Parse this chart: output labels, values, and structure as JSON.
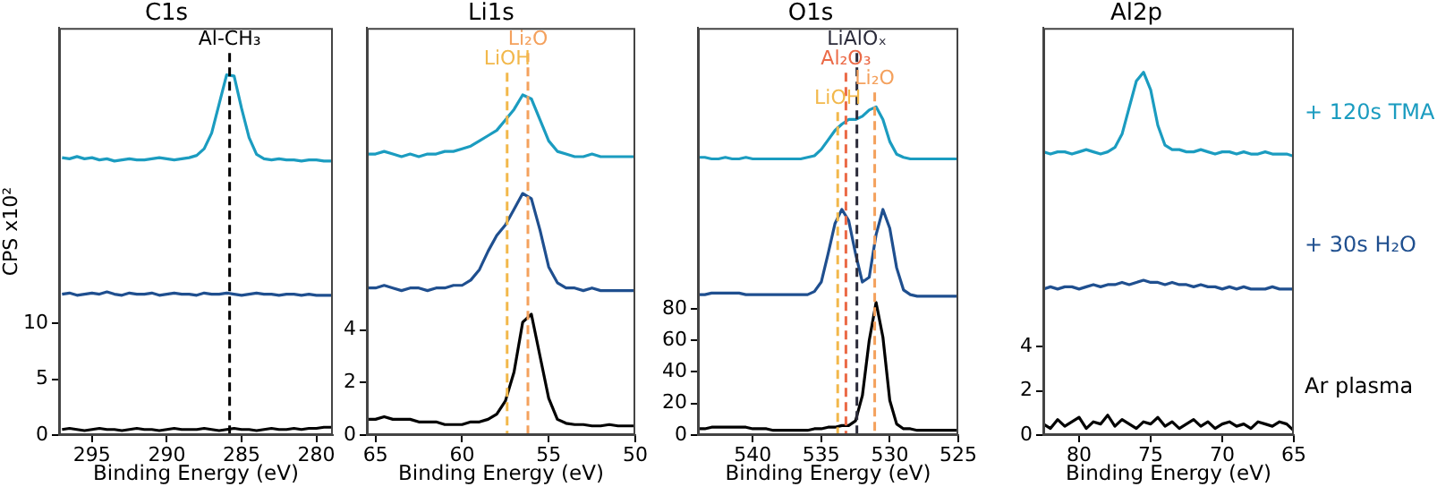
{
  "chart_data": [
    {
      "type": "line",
      "title": "C1s",
      "xlabel": "Binding Energy (eV)",
      "ylabel": "CPS x10²",
      "xlim": [
        297.2,
        278.9
      ],
      "xticks": [
        295,
        290,
        285,
        280
      ],
      "ylim": [
        0,
        36.4
      ],
      "yticks": [
        0,
        5,
        10
      ],
      "x": [
        297,
        296.5,
        296,
        295.5,
        295,
        294.5,
        294,
        293.5,
        293,
        292.5,
        292,
        291.5,
        291,
        290.5,
        290,
        289.5,
        289,
        288.5,
        288,
        287.5,
        287,
        286.5,
        286,
        285.5,
        285,
        284.5,
        284,
        283.5,
        283,
        282.5,
        282,
        281.5,
        281,
        280.5,
        280,
        279.5,
        279
      ],
      "series": [
        {
          "color": "#000000",
          "values": [
            0.5,
            0.6,
            0.5,
            0.4,
            0.5,
            0.6,
            0.5,
            0.5,
            0.4,
            0.5,
            0.6,
            0.5,
            0.5,
            0.4,
            0.5,
            0.6,
            0.5,
            0.5,
            0.5,
            0.6,
            0.5,
            0.4,
            0.5,
            0.6,
            0.5,
            0.5,
            0.4,
            0.5,
            0.6,
            0.5,
            0.5,
            0.6,
            0.5,
            0.6,
            0.6,
            0.7,
            0.7
          ]
        },
        {
          "color": "#1f4f8f",
          "values": [
            12.6,
            12.7,
            12.5,
            12.6,
            12.7,
            12.6,
            12.8,
            12.6,
            12.5,
            12.7,
            12.6,
            12.6,
            12.7,
            12.5,
            12.6,
            12.7,
            12.6,
            12.6,
            12.5,
            12.7,
            12.6,
            12.6,
            12.7,
            12.6,
            12.5,
            12.6,
            12.7,
            12.6,
            12.6,
            12.5,
            12.6,
            12.6,
            12.5,
            12.6,
            12.5,
            12.5,
            12.5
          ]
        },
        {
          "color": "#1b9cc0",
          "values": [
            24.8,
            24.7,
            24.9,
            24.7,
            24.8,
            24.6,
            24.7,
            24.5,
            24.6,
            24.7,
            24.6,
            24.6,
            24.7,
            24.8,
            24.7,
            24.6,
            24.7,
            24.8,
            25.0,
            25.6,
            27.0,
            29.6,
            32.2,
            32.1,
            29.2,
            26.6,
            25.1,
            24.7,
            24.6,
            24.7,
            24.6,
            24.6,
            24.5,
            24.6,
            24.6,
            24.5,
            24.5
          ]
        }
      ],
      "ref_lines": [
        {
          "axis": "x",
          "value": 285.8,
          "label": "Al-CH₃",
          "color": "#000000",
          "line_style": "dashed"
        }
      ]
    },
    {
      "type": "line",
      "title": "Li1s",
      "xlabel": "Binding Energy (eV)",
      "xlim": [
        65.5,
        50
      ],
      "xticks": [
        65,
        60,
        55,
        50
      ],
      "ylim": [
        0,
        15.5
      ],
      "yticks": [
        0,
        2,
        4
      ],
      "x": [
        65.5,
        65,
        64.5,
        64,
        63.5,
        63,
        62.5,
        62,
        61.5,
        61,
        60.5,
        60,
        59.5,
        59,
        58.5,
        58,
        57.5,
        57,
        56.5,
        56,
        55.5,
        55,
        54.5,
        54,
        53.5,
        53,
        52.5,
        52,
        51.5,
        51,
        50.5,
        50
      ],
      "series": [
        {
          "color": "#000000",
          "values": [
            0.6,
            0.6,
            0.7,
            0.6,
            0.6,
            0.6,
            0.5,
            0.5,
            0.5,
            0.4,
            0.4,
            0.4,
            0.5,
            0.5,
            0.6,
            0.8,
            1.3,
            2.4,
            4.3,
            4.6,
            3.0,
            1.4,
            0.6,
            0.45,
            0.4,
            0.4,
            0.35,
            0.35,
            0.4,
            0.35,
            0.35,
            0.35
          ]
        },
        {
          "color": "#1f4f8f",
          "values": [
            5.6,
            5.6,
            5.7,
            5.6,
            5.5,
            5.6,
            5.6,
            5.5,
            5.6,
            5.6,
            5.7,
            5.7,
            5.9,
            6.3,
            7.0,
            7.6,
            8.0,
            8.6,
            9.2,
            9.0,
            7.8,
            6.4,
            5.8,
            5.6,
            5.6,
            5.5,
            5.6,
            5.5,
            5.5,
            5.5,
            5.5,
            5.5
          ]
        },
        {
          "color": "#1b9cc0",
          "values": [
            10.7,
            10.7,
            10.8,
            10.7,
            10.6,
            10.7,
            10.6,
            10.7,
            10.7,
            10.8,
            10.8,
            10.9,
            11.0,
            11.2,
            11.4,
            11.6,
            12.0,
            12.4,
            12.95,
            12.8,
            12.0,
            11.2,
            10.8,
            10.7,
            10.6,
            10.6,
            10.7,
            10.6,
            10.6,
            10.6,
            10.6,
            10.6
          ]
        }
      ],
      "ref_lines": [
        {
          "axis": "x",
          "value": 56.2,
          "label": "Li₂O",
          "color": "#f4a15d",
          "line_style": "dashed"
        },
        {
          "axis": "x",
          "value": 57.4,
          "label": "LiOH",
          "color": "#f2b84b",
          "line_style": "dashed"
        }
      ]
    },
    {
      "type": "line",
      "title": "O1s",
      "xlabel": "Binding Energy (eV)",
      "xlim": [
        544,
        525
      ],
      "xticks": [
        540,
        535,
        530,
        525
      ],
      "ylim": [
        0,
        258
      ],
      "yticks": [
        0,
        20,
        40,
        60,
        80
      ],
      "x": [
        544,
        543.5,
        543,
        542.5,
        542,
        541.5,
        541,
        540.5,
        540,
        539.5,
        539,
        538.5,
        538,
        537.5,
        537,
        536.5,
        536,
        535.5,
        535,
        534.5,
        534,
        533.5,
        533,
        532.5,
        532,
        531.5,
        531,
        530.5,
        530,
        529.5,
        529,
        528.5,
        528,
        527.5,
        527,
        526.5,
        526,
        525.5,
        525
      ],
      "series": [
        {
          "color": "#000000",
          "values": [
            4,
            4,
            5,
            5,
            5,
            5,
            5,
            5,
            4,
            4,
            4,
            3,
            3,
            3,
            3,
            3,
            3,
            4,
            4,
            5,
            5,
            6,
            6,
            9,
            25,
            60,
            84,
            62,
            22,
            7,
            4,
            4,
            3,
            3,
            3,
            3,
            3,
            3,
            3
          ]
        },
        {
          "color": "#1f4f8f",
          "values": [
            89,
            89,
            90,
            90,
            90,
            90,
            90,
            89,
            89,
            89,
            89,
            89,
            89,
            89,
            89,
            89,
            89,
            91,
            97,
            115,
            134,
            143,
            136,
            115,
            97,
            100,
            127,
            143,
            131,
            106,
            92,
            89,
            88,
            88,
            88,
            88,
            88,
            88,
            88
          ]
        },
        {
          "color": "#1b9cc0",
          "values": [
            176,
            176,
            175,
            175,
            176,
            175,
            175,
            176,
            175,
            175,
            175,
            175,
            175,
            175,
            175,
            175,
            176,
            177,
            181,
            187,
            193,
            197,
            200,
            200,
            202,
            206,
            208,
            200,
            186,
            178,
            176,
            175,
            175,
            175,
            175,
            175,
            175,
            175,
            175
          ]
        }
      ],
      "ref_lines": [
        {
          "axis": "x",
          "value": 532.4,
          "label": "LiAlOₓ",
          "color": "#2b2b3a",
          "line_style": "dashed"
        },
        {
          "axis": "x",
          "value": 533.2,
          "label": "Al₂O₃",
          "color": "#eb6a47",
          "line_style": "dashed"
        },
        {
          "axis": "x",
          "value": 531.1,
          "label": "Li₂O",
          "color": "#f4a15d",
          "line_style": "dashed"
        },
        {
          "axis": "x",
          "value": 533.8,
          "label": "LiOH",
          "color": "#f2b84b",
          "line_style": "dashed"
        }
      ]
    },
    {
      "type": "line",
      "title": "Al2p",
      "xlabel": "Binding Energy (eV)",
      "xlim": [
        82.5,
        65
      ],
      "xticks": [
        80,
        75,
        70,
        65
      ],
      "ylim": [
        0,
        18.4
      ],
      "yticks": [
        0,
        2,
        4
      ],
      "x": [
        82.5,
        82,
        81.5,
        81,
        80.5,
        80,
        79.5,
        79,
        78.5,
        78,
        77.5,
        77,
        76.5,
        76,
        75.5,
        75,
        74.5,
        74,
        73.5,
        73,
        72.5,
        72,
        71.5,
        71,
        70.5,
        70,
        69.5,
        69,
        68.5,
        68,
        67.5,
        67,
        66.5,
        66,
        65.5,
        65
      ],
      "series": [
        {
          "name": "Ar plasma",
          "color": "#000000",
          "values": [
            0.5,
            0.3,
            0.7,
            0.4,
            0.6,
            0.8,
            0.3,
            0.6,
            0.5,
            0.9,
            0.4,
            0.7,
            0.5,
            0.3,
            0.6,
            0.5,
            0.8,
            0.4,
            0.6,
            0.3,
            0.5,
            0.7,
            0.4,
            0.6,
            0.3,
            0.5,
            0.6,
            0.4,
            0.5,
            0.3,
            0.6,
            0.5,
            0.4,
            0.6,
            0.5,
            0.2
          ]
        },
        {
          "name": "+ 30s H₂O",
          "color": "#1f4f8f",
          "values": [
            6.6,
            6.7,
            6.6,
            6.7,
            6.7,
            6.6,
            6.7,
            6.8,
            6.7,
            6.8,
            6.8,
            6.9,
            6.8,
            6.9,
            7.0,
            6.9,
            6.9,
            6.8,
            6.9,
            6.8,
            6.8,
            6.7,
            6.8,
            6.7,
            6.7,
            6.6,
            6.7,
            6.6,
            6.7,
            6.6,
            6.6,
            6.6,
            6.7,
            6.6,
            6.6,
            6.6
          ]
        },
        {
          "name": "+ 120s TMA",
          "color": "#1b9cc0",
          "values": [
            12.8,
            12.7,
            12.8,
            12.8,
            12.7,
            12.8,
            12.9,
            12.8,
            12.7,
            12.8,
            13.0,
            13.6,
            14.8,
            16.0,
            16.4,
            15.6,
            14.0,
            13.1,
            12.9,
            12.9,
            12.8,
            12.8,
            12.9,
            12.8,
            12.7,
            12.8,
            12.8,
            12.7,
            12.8,
            12.7,
            12.7,
            12.8,
            12.7,
            12.7,
            12.7,
            12.6
          ]
        }
      ]
    }
  ]
}
